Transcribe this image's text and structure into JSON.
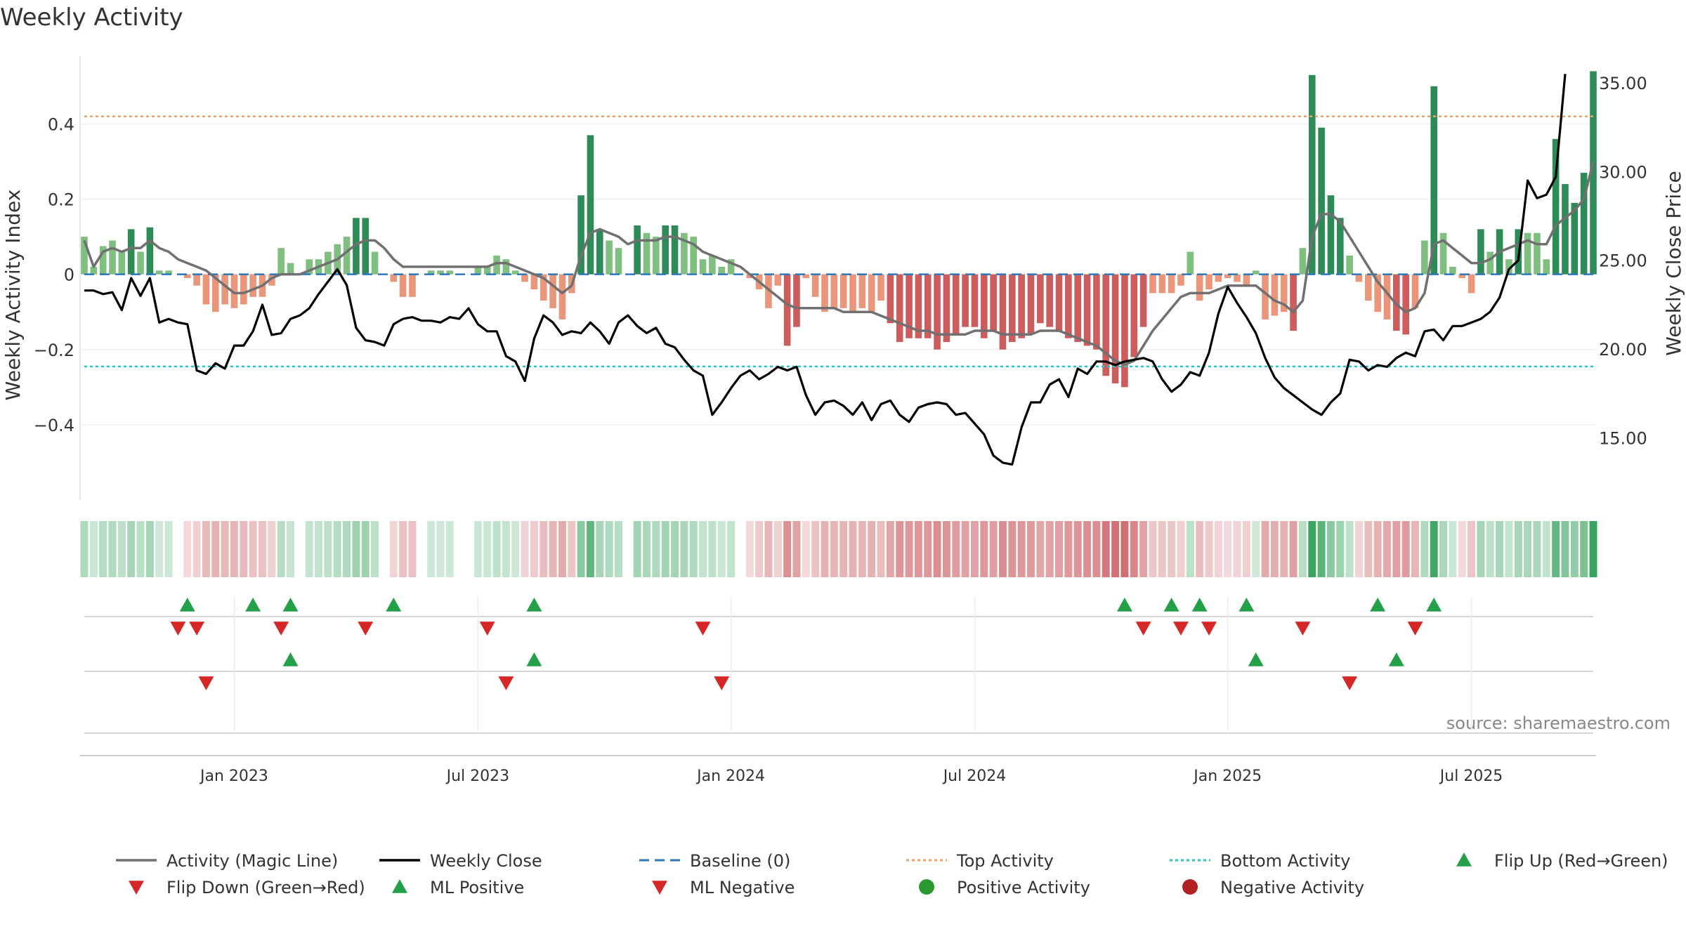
{
  "chart_data": {
    "type": "bar",
    "title": "Weekly Activity",
    "ylabel": "Weekly Activity Index",
    "ylabel_right": "Weekly Close Price",
    "source": "source: sharemaestro.com",
    "ylim": [
      -0.6,
      0.58
    ],
    "ylim_right": [
      11.5,
      36.5
    ],
    "yticks": [
      {
        "v": 0.4,
        "label": "0.4"
      },
      {
        "v": 0.2,
        "label": "0.2"
      },
      {
        "v": 0,
        "label": "0"
      },
      {
        "v": -0.2,
        "label": "−0.2"
      },
      {
        "v": -0.4,
        "label": "−0.4"
      }
    ],
    "yticks_right": [
      {
        "v": 35,
        "label": "35.00"
      },
      {
        "v": 30,
        "label": "30.00"
      },
      {
        "v": 25,
        "label": "25.00"
      },
      {
        "v": 20,
        "label": "20.00"
      },
      {
        "v": 15,
        "label": "15.00"
      }
    ],
    "xticks": [
      {
        "week": 16,
        "label": "Jan 2023"
      },
      {
        "week": 42,
        "label": "Jul 2023"
      },
      {
        "week": 69,
        "label": "Jan 2024"
      },
      {
        "week": 95,
        "label": "Jul 2024"
      },
      {
        "week": 122,
        "label": "Jan 2025"
      },
      {
        "week": 148,
        "label": "Jul 2025"
      }
    ],
    "top_activity": 0.42,
    "bottom_activity": -0.245,
    "activity": [
      0.1,
      0.02,
      0.075,
      0.09,
      0.06,
      0.12,
      0.06,
      0.125,
      0.01,
      0.01,
      0,
      -0.01,
      -0.03,
      -0.08,
      -0.1,
      -0.08,
      -0.09,
      -0.08,
      -0.06,
      -0.06,
      -0.03,
      0.07,
      0.03,
      0,
      0.04,
      0.04,
      0.06,
      0.08,
      0.1,
      0.15,
      0.15,
      0.06,
      0,
      -0.02,
      -0.06,
      -0.06,
      0,
      0.01,
      0.01,
      0.01,
      0,
      0,
      0.02,
      0.02,
      0.05,
      0.04,
      0.01,
      -0.02,
      -0.04,
      -0.07,
      -0.09,
      -0.12,
      -0.05,
      0.21,
      0.37,
      0.12,
      0.09,
      0.07,
      0,
      0.13,
      0.11,
      0.1,
      0.13,
      0.13,
      0.11,
      0.1,
      0.04,
      0.05,
      0.02,
      0.04,
      0,
      -0.01,
      -0.04,
      -0.09,
      -0.03,
      -0.19,
      -0.14,
      -0.01,
      -0.06,
      -0.1,
      -0.09,
      -0.09,
      -0.1,
      -0.09,
      -0.1,
      -0.07,
      -0.13,
      -0.18,
      -0.17,
      -0.17,
      -0.17,
      -0.2,
      -0.18,
      -0.16,
      -0.14,
      -0.14,
      -0.17,
      -0.15,
      -0.2,
      -0.18,
      -0.17,
      -0.16,
      -0.13,
      -0.14,
      -0.15,
      -0.17,
      -0.18,
      -0.19,
      -0.2,
      -0.27,
      -0.29,
      -0.3,
      -0.22,
      -0.14,
      -0.05,
      -0.05,
      -0.05,
      -0.03,
      0.06,
      -0.07,
      -0.04,
      -0.02,
      -0.01,
      -0.02,
      -0.03,
      0.01,
      -0.12,
      -0.11,
      -0.1,
      -0.15,
      0.07,
      0.53,
      0.39,
      0.21,
      0.15,
      0.05,
      -0.02,
      -0.07,
      -0.1,
      -0.12,
      -0.15,
      -0.16,
      -0.09,
      0.09,
      0.5,
      0.11,
      0.02,
      -0.01,
      -0.05,
      0.12,
      0.06,
      0.12,
      0.04,
      0.12,
      0.11,
      0.11,
      0.04,
      0.36,
      0.24,
      0.19,
      0.27,
      0.54
    ],
    "magic_line": [
      0.09,
      0.02,
      0.06,
      0.07,
      0.06,
      0.07,
      0.07,
      0.09,
      0.07,
      0.06,
      0.04,
      0.03,
      0.02,
      0.01,
      -0.01,
      -0.03,
      -0.05,
      -0.05,
      -0.04,
      -0.03,
      -0.01,
      0,
      0,
      0,
      0.01,
      0.02,
      0.03,
      0.04,
      0.06,
      0.08,
      0.09,
      0.09,
      0.07,
      0.04,
      0.02,
      0.02,
      0.02,
      0.02,
      0.02,
      0.02,
      0.02,
      0.02,
      0.02,
      0.02,
      0.03,
      0.03,
      0.02,
      0.01,
      0,
      -0.01,
      -0.03,
      -0.05,
      -0.03,
      0.05,
      0.11,
      0.12,
      0.11,
      0.1,
      0.08,
      0.09,
      0.09,
      0.09,
      0.1,
      0.1,
      0.09,
      0.08,
      0.06,
      0.05,
      0.04,
      0.03,
      0.02,
      0,
      -0.02,
      -0.04,
      -0.06,
      -0.08,
      -0.09,
      -0.09,
      -0.09,
      -0.09,
      -0.09,
      -0.1,
      -0.1,
      -0.1,
      -0.1,
      -0.11,
      -0.12,
      -0.13,
      -0.14,
      -0.15,
      -0.15,
      -0.16,
      -0.16,
      -0.16,
      -0.16,
      -0.15,
      -0.15,
      -0.15,
      -0.16,
      -0.16,
      -0.16,
      -0.16,
      -0.15,
      -0.15,
      -0.15,
      -0.16,
      -0.17,
      -0.18,
      -0.19,
      -0.21,
      -0.23,
      -0.24,
      -0.23,
      -0.19,
      -0.15,
      -0.12,
      -0.09,
      -0.06,
      -0.05,
      -0.05,
      -0.05,
      -0.04,
      -0.03,
      -0.03,
      -0.03,
      -0.03,
      -0.05,
      -0.07,
      -0.08,
      -0.1,
      -0.07,
      0.1,
      0.16,
      0.16,
      0.14,
      0.1,
      0.06,
      0.02,
      -0.02,
      -0.05,
      -0.08,
      -0.1,
      -0.09,
      -0.05,
      0.08,
      0.09,
      0.07,
      0.05,
      0.03,
      0.03,
      0.04,
      0.06,
      0.07,
      0.08,
      0.09,
      0.08,
      0.08,
      0.13,
      0.15,
      0.17,
      0.2,
      0.3
    ],
    "weekly_close": [
      23.3,
      23.3,
      23.1,
      23.2,
      22.2,
      24,
      23,
      24,
      21.5,
      21.7,
      21.5,
      21.4,
      18.8,
      18.6,
      19.2,
      18.9,
      20.2,
      20.2,
      21,
      22.5,
      20.8,
      20.9,
      21.7,
      21.9,
      22.3,
      23.1,
      23.8,
      24.5,
      23.6,
      21.2,
      20.5,
      20.4,
      20.2,
      21.4,
      21.7,
      21.8,
      21.6,
      21.6,
      21.5,
      21.8,
      21.7,
      22.3,
      21.4,
      21,
      21,
      19.6,
      19.3,
      18.2,
      20.6,
      21.9,
      21.5,
      20.8,
      21,
      20.9,
      21.5,
      21,
      20.3,
      21.5,
      21.9,
      21.3,
      20.9,
      21.2,
      20.3,
      20.1,
      19.4,
      18.8,
      18.5,
      16.3,
      17,
      17.8,
      18.5,
      18.8,
      18.3,
      18.6,
      19,
      18.8,
      19,
      17.4,
      16.3,
      17,
      17.1,
      16.8,
      16.3,
      17,
      16,
      16.9,
      17.1,
      16.3,
      15.9,
      16.7,
      16.9,
      17,
      16.9,
      16.3,
      16.4,
      15.8,
      15.2,
      14,
      13.6,
      13.5,
      15.6,
      17,
      17,
      18,
      18.3,
      17.3,
      18.9,
      18.6,
      19.3,
      19.3,
      19.1,
      19.3,
      19.4,
      19.5,
      19.3,
      18.3,
      17.6,
      18,
      18.7,
      18.5,
      19.8,
      22,
      23.5,
      22.6,
      21.8,
      20.9,
      19.5,
      18.4,
      17.8,
      17.4,
      17,
      16.6,
      16.3,
      17,
      17.5,
      19.4,
      19.3,
      18.8,
      19.1,
      19,
      19.5,
      19.8,
      19.6,
      21,
      21.1,
      20.5,
      21.3,
      21.3,
      21.5,
      21.7,
      22.1,
      22.9,
      24.5,
      25,
      29.5,
      28.5,
      28.7,
      29.7,
      35.5
    ],
    "flip_up_weeks": [
      11,
      18,
      22,
      33,
      48,
      111,
      116,
      119,
      124,
      138,
      144
    ],
    "flip_down_weeks": [
      10,
      12,
      21,
      30,
      43,
      66,
      113,
      117,
      120,
      130,
      142
    ],
    "ml_positive_weeks": [
      22,
      48,
      125,
      140
    ],
    "ml_negative_weeks": [
      13,
      45,
      68,
      135
    ],
    "legend": [
      {
        "label": "Activity (Magic Line)",
        "color": "#707070",
        "kind": "line"
      },
      {
        "label": "Weekly Close",
        "color": "#000000",
        "kind": "line"
      },
      {
        "label": "Baseline (0)",
        "color": "#2e77b8",
        "kind": "dash"
      },
      {
        "label": "Top Activity",
        "color": "#e8a66b",
        "kind": "dot"
      },
      {
        "label": "Bottom Activity",
        "color": "#2bc4cc",
        "kind": "dot"
      },
      {
        "label": "Flip Up (Red→Green)",
        "color": "#24a048",
        "kind": "tri-up"
      },
      {
        "label": "Flip Down (Green→Red)",
        "color": "#d62728",
        "kind": "tri-down"
      },
      {
        "label": "ML Positive",
        "color": "#24a048",
        "kind": "tri-up"
      },
      {
        "label": "ML Negative",
        "color": "#d62728",
        "kind": "tri-down"
      },
      {
        "label": "Positive Activity",
        "color": "#2a9a30",
        "kind": "circle"
      },
      {
        "label": "Negative Activity",
        "color": "#b22222",
        "kind": "circle"
      }
    ]
  }
}
